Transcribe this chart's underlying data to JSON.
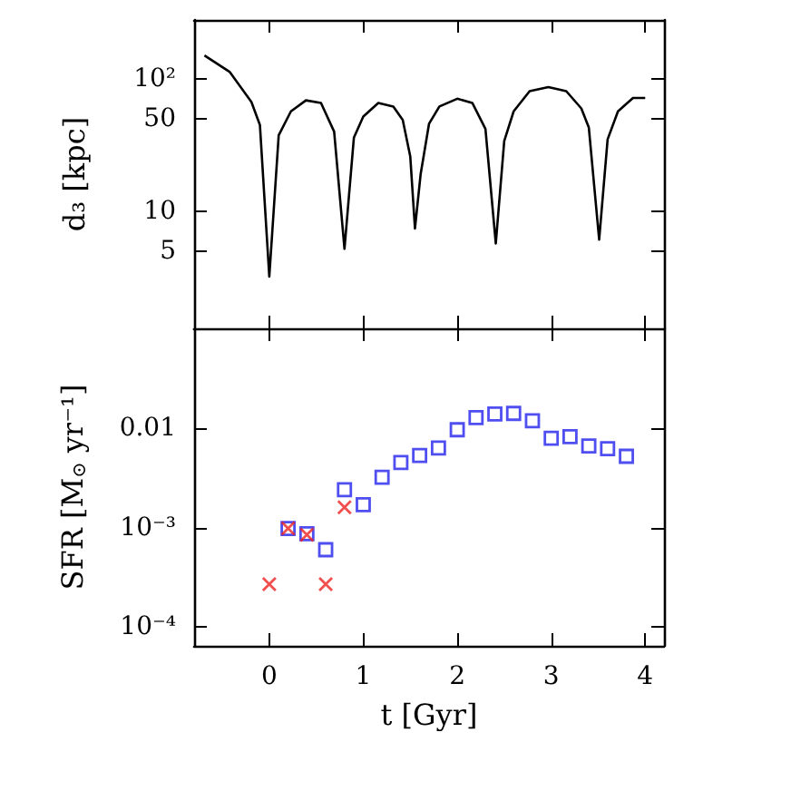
{
  "chart_data": [
    {
      "type": "line",
      "ylabel": "d₃ [kpc]",
      "log": "y",
      "marker": "none",
      "line_style": "solid",
      "tick_labels": "y",
      "xlim": [
        -0.8,
        4.2
      ],
      "xticks": [
        0,
        1,
        2,
        3,
        4
      ],
      "ylim": [
        1.3,
        280
      ],
      "yticks": [
        5,
        10,
        50,
        {
          "value": 100,
          "label": "10²"
        }
      ],
      "series": [
        {
          "color": "#000000",
          "x": [
            -0.69,
            -0.42,
            -0.19,
            -0.1,
            0,
            0.1,
            0.23,
            0.39,
            0.55,
            0.69,
            0.8,
            0.9,
            1.0,
            1.16,
            1.32,
            1.42,
            1.5,
            1.55,
            1.61,
            1.7,
            1.81,
            2.0,
            2.16,
            2.3,
            2.41,
            2.5,
            2.6,
            2.77,
            2.97,
            3.16,
            3.32,
            3.4,
            3.51,
            3.6,
            3.71,
            3.87,
            4.0
          ],
          "values": [
            151,
            113,
            67,
            45,
            3.2,
            37.6,
            57,
            69,
            66,
            40,
            5.2,
            36,
            52,
            66,
            62,
            49,
            26,
            7.4,
            19,
            46,
            62,
            71,
            66,
            42,
            5.7,
            34,
            57,
            81,
            87,
            81,
            60,
            43,
            6.1,
            35,
            57,
            72,
            72
          ]
        }
      ]
    },
    {
      "type": "scatter",
      "xlabel": "t [Gyr]",
      "ylabel": "SFR [M$_{⊙}$ yr⁻¹]",
      "log": "y",
      "xlim": [
        -0.8,
        4.2
      ],
      "xticks": [
        0,
        1,
        2,
        3,
        4
      ],
      "ylim": [
        6.5e-05,
        0.1
      ],
      "yticks": [
        {
          "value": 0.0001,
          "label": "10⁻⁴"
        },
        {
          "value": 0.001,
          "label": "10⁻³"
        },
        {
          "value": 0.01,
          "label": "0.01"
        }
      ],
      "series": [
        {
          "color": "#2222ee",
          "marker": "square",
          "x": [
            0.2,
            0.4,
            0.6,
            0.8,
            1.0,
            1.2,
            1.4,
            1.6,
            1.8,
            2.0,
            2.2,
            2.4,
            2.6,
            2.8,
            3.0,
            3.2,
            3.4,
            3.6,
            3.8
          ],
          "values": [
            0.00098,
            0.00087,
            0.0006,
            0.0024,
            0.0017,
            0.0032,
            0.0045,
            0.0053,
            0.0063,
            0.0096,
            0.0127,
            0.0138,
            0.014,
            0.0118,
            0.0079,
            0.0082,
            0.0066,
            0.0062,
            0.0052
          ]
        },
        {
          "color": "#ee2222",
          "marker": "cross",
          "x": [
            0,
            0.2,
            0.4,
            0.6,
            0.8
          ],
          "values": [
            0.00027,
            0.00098,
            0.00085,
            0.00027,
            0.0016
          ]
        }
      ]
    }
  ]
}
